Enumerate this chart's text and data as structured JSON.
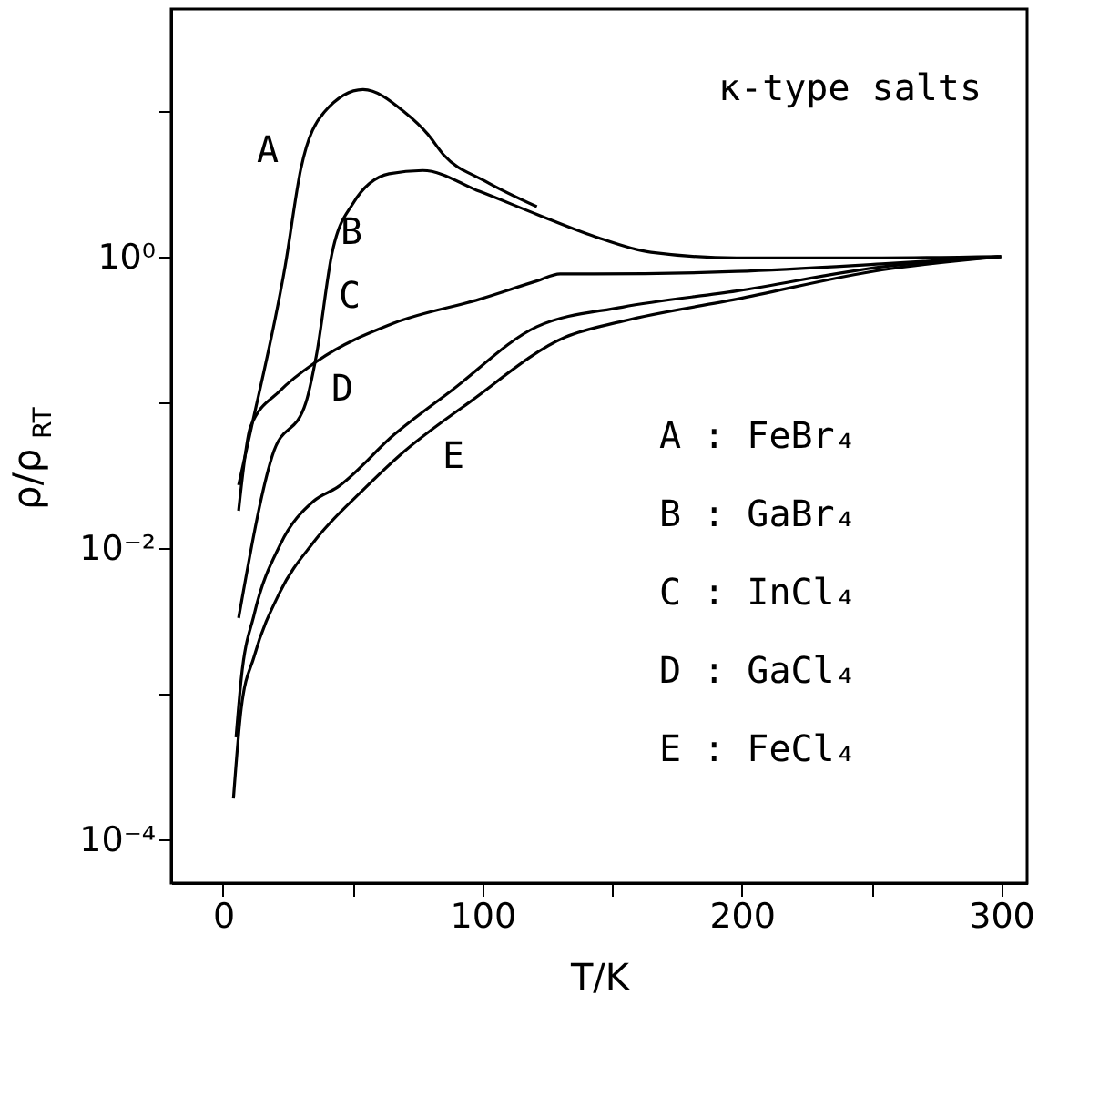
{
  "chart_data": {
    "type": "line",
    "xlabel": "T/K",
    "ylabel": "ρ/ρ$_{RT}$",
    "xlim": [
      -20,
      310
    ],
    "xticks": [
      0,
      {
        "value": 50,
        "label": null
      },
      100,
      {
        "value": 150,
        "label": null
      },
      200,
      {
        "value": 250,
        "label": null
      },
      300
    ],
    "ylim": [
      5e-05,
      50
    ],
    "yticks": [
      {
        "value": 10,
        "label": null
      },
      {
        "value": 1,
        "label": "10⁰"
      },
      {
        "value": 0.1,
        "label": null
      },
      {
        "value": 0.01,
        "label": "10⁻²"
      },
      {
        "value": 0.001,
        "label": null
      },
      {
        "value": 0.0001,
        "label": "10⁻⁴"
      }
    ],
    "log": "y",
    "grid": false,
    "line_style": "solid",
    "marker": "none",
    "series": [
      {
        "color": "#000000",
        "x": [
          6,
          10.6,
          24,
          30,
          39,
          54,
          70,
          79,
          85,
          101,
          121
        ],
        "values": [
          0.027,
          0.063,
          0.87,
          4.0,
          9.8,
          14,
          9.8,
          6.9,
          5.0,
          3.3,
          2.2
        ]
      },
      {
        "color": "#000000",
        "x": [
          6,
          19,
          32,
          36,
          42,
          50,
          64,
          77,
          99,
          121,
          143,
          165,
          198,
          254,
          299
        ],
        "values": [
          0.0033,
          0.043,
          0.1,
          0.21,
          1.05,
          2.3,
          3.7,
          3.9,
          2.8,
          1.95,
          1.38,
          1.07,
          0.98,
          0.98,
          1.0
        ]
      },
      {
        "color": "#000000",
        "x": [
          6,
          10.6,
          22,
          36,
          66,
          99,
          121,
          130,
          143,
          198,
          254,
          300
        ],
        "values": [
          0.018,
          0.068,
          0.12,
          0.19,
          0.35,
          0.51,
          0.68,
          0.76,
          0.76,
          0.79,
          0.89,
          1.0
        ]
      },
      {
        "color": "#000000",
        "x": [
          5,
          7,
          12,
          22,
          35,
          44,
          66,
          88,
          121,
          154,
          198,
          254,
          300
        ],
        "values": [
          0.0005,
          0.00126,
          0.0035,
          0.0105,
          0.021,
          0.026,
          0.06,
          0.12,
          0.33,
          0.45,
          0.58,
          0.85,
          1.0
        ]
      },
      {
        "color": "#000000",
        "x": [
          4,
          7,
          12,
          22,
          35,
          55,
          68,
          95,
          132,
          154,
          198,
          254,
          300
        ],
        "values": [
          0.00019,
          0.00079,
          0.0018,
          0.005,
          0.011,
          0.026,
          0.043,
          0.1,
          0.28,
          0.36,
          0.51,
          0.81,
          1.0
        ]
      }
    ],
    "annotations": [
      "κ-type salts",
      "A",
      "B",
      "C",
      "D",
      "E",
      "A : FeBr₄",
      "B : GaBr₄",
      "C : InCl₄",
      "D : GaCl₄",
      "E : FeCl₄"
    ]
  }
}
